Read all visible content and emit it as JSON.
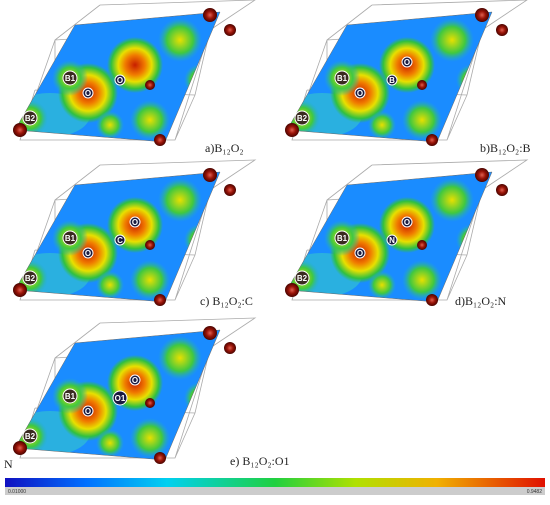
{
  "panels": [
    {
      "label": "a)B₁₂O₂",
      "atoms": [
        "B1",
        "B2",
        "O",
        "O"
      ]
    },
    {
      "label": "b)B₁₂O₂:B",
      "atoms": [
        "B1",
        "B2",
        "O",
        "B",
        "O"
      ]
    },
    {
      "label": "c)  B₁₂O₂:C",
      "atoms": [
        "B1",
        "B2",
        "O",
        "C",
        "O"
      ]
    },
    {
      "label": "d)B₁₂O₂:N",
      "atoms": [
        "B1",
        "B2",
        "O",
        "N",
        "O"
      ]
    },
    {
      "label": "e) B₁₂O₂:O1",
      "atoms": [
        "B1",
        "B2",
        "O",
        "O1",
        "O"
      ]
    }
  ],
  "side_label": "N",
  "colorbar": {
    "min_label": "0.01000",
    "max_label": "0.9482"
  }
}
